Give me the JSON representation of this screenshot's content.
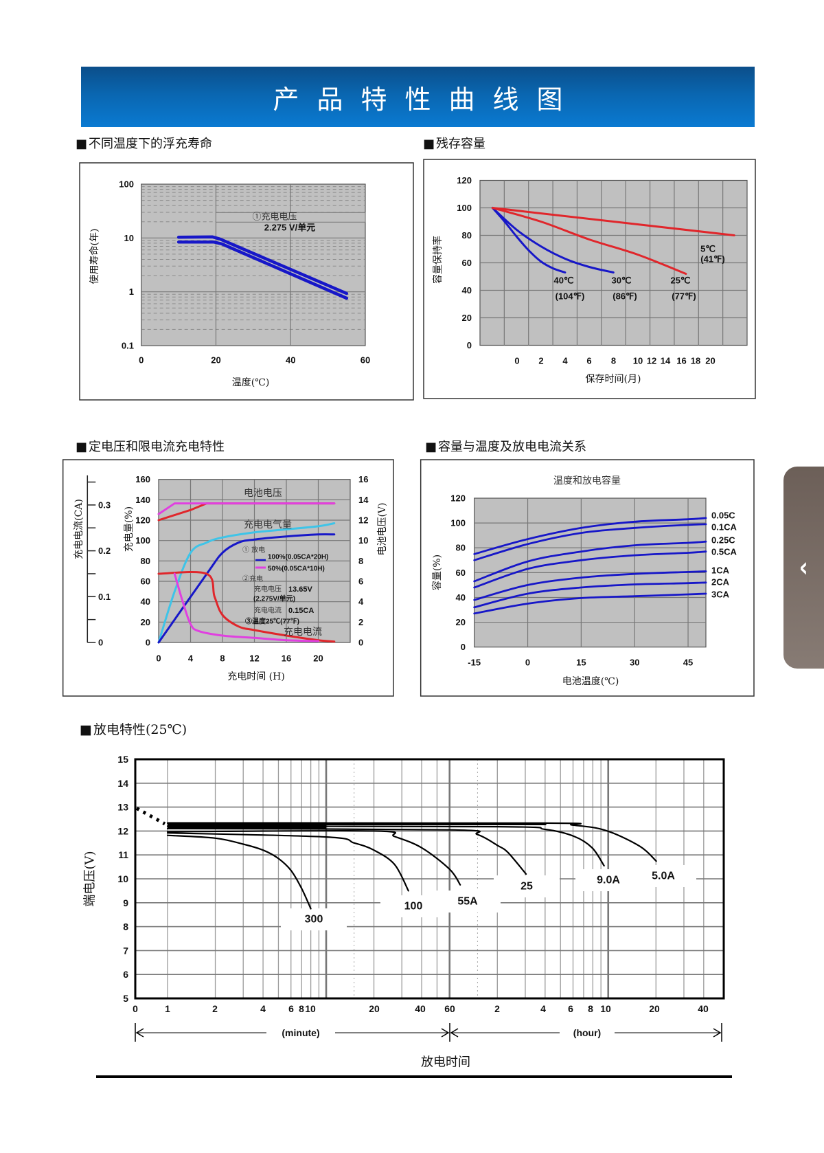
{
  "header": {
    "title": "产品特性曲线图"
  },
  "section_marker": "■",
  "side_tab": {
    "icon": "chevron-left-icon",
    "glyph": "‹"
  },
  "colors": {
    "banner": "#0a66b0",
    "plot_bg": "#c0c0c0",
    "blue": "#1717c8",
    "red": "#e0262b",
    "magenta": "#e040e0",
    "cyan": "#3ec4e8"
  },
  "chart_data": [
    {
      "type": "line",
      "title": "不同温度下的浮充寿命",
      "xlabel": "温度(℃)",
      "ylabel": "使用寿命(年)",
      "xlim": [
        0,
        60
      ],
      "ylim": [
        0.1,
        100
      ],
      "yscale": "log",
      "grid": true,
      "xticks": [
        "0",
        "20",
        "40",
        "60"
      ],
      "yticks": [
        "0.1",
        "1",
        "10",
        "100"
      ],
      "annotation": {
        "line1": "①充电电压",
        "line2": "2.275 V/单元"
      },
      "series": [
        {
          "color": "#1717c8",
          "values": [
            [
              10,
              10.3
            ],
            [
              19,
              10.5
            ],
            [
              21,
              9.6
            ],
            [
              55,
              0.93
            ]
          ]
        },
        {
          "color": "#1717c8",
          "values": [
            [
              10,
              8.4
            ],
            [
              19.5,
              8.4
            ],
            [
              21.5,
              7.8
            ],
            [
              55,
              0.76
            ]
          ]
        }
      ]
    },
    {
      "type": "line",
      "title": "残存容量",
      "xlabel": "保存时间(月)",
      "ylabel": "容量保持率",
      "ylim": [
        0,
        120
      ],
      "grid": true,
      "xticks": [
        "0",
        "2",
        "4",
        "6",
        "8",
        "10",
        "12",
        "14",
        "16",
        "18",
        "20"
      ],
      "yticks": [
        "0",
        "20",
        "40",
        "60",
        "80",
        "100",
        "120"
      ],
      "series": [
        {
          "label": [
            "40℃",
            "(104℉)"
          ],
          "color": "#1717c8",
          "values": [
            [
              0,
              100
            ],
            [
              1,
              90
            ],
            [
              2,
              79
            ],
            [
              3,
              69
            ],
            [
              4,
              61
            ],
            [
              5,
              56
            ],
            [
              6,
              53
            ]
          ]
        },
        {
          "label": [
            "30℃",
            "(86℉)"
          ],
          "color": "#1717c8",
          "values": [
            [
              0,
              100
            ],
            [
              2,
              84
            ],
            [
              4,
              72
            ],
            [
              6,
              63
            ],
            [
              8,
              57
            ],
            [
              10,
              53
            ]
          ]
        },
        {
          "label": [
            "25℃",
            "(77℉)"
          ],
          "color": "#e0262b",
          "values": [
            [
              0,
              100
            ],
            [
              4,
              90
            ],
            [
              8,
              77
            ],
            [
              12,
              66
            ],
            [
              16,
              52
            ]
          ]
        },
        {
          "label": [
            "5℃",
            "(41℉)"
          ],
          "color": "#e0262b",
          "values": [
            [
              0,
              100
            ],
            [
              20,
              80
            ]
          ]
        }
      ]
    },
    {
      "type": "line",
      "title": "定电压和限电流充电特性",
      "xlabel": "充电时间  (H)",
      "ylabel_left": "充电量(%)",
      "ylabel_right": "电池电压(V)",
      "ylabel_far_left": "充电电流(CA)",
      "xlim": [
        0,
        24
      ],
      "ylim_left": [
        0,
        160
      ],
      "ylim_right": [
        0,
        16
      ],
      "grid": true,
      "xticks": [
        "0",
        "4",
        "8",
        "12",
        "16",
        "20"
      ],
      "yticks_left": [
        "0",
        "20",
        "40",
        "60",
        "80",
        "100",
        "120",
        "140",
        "160"
      ],
      "yticks_right": [
        "0",
        "2",
        "4",
        "6",
        "8",
        "10",
        "12",
        "14",
        "16"
      ],
      "yticks_far_left": [
        "0",
        "0.1",
        "0.2",
        "0.3"
      ],
      "annotations": {
        "voltage": "电池电压",
        "charge": "充电电气量",
        "discharge": "① 放电",
        "legend_100": "100%(0.05CA*20H)",
        "legend_50": "50%(0.05CA*10H)",
        "charge_cond": "②充电",
        "charge_voltage_label": "充电电压",
        "charge_voltage_value": "13.65V",
        "per_cell": "(2.275V/单元)",
        "charge_current_label": "充电电流",
        "charge_current_value": "0.15CA",
        "temperature": "③温度25℃(77℉)",
        "current": "充电电流"
      },
      "series": [
        {
          "axis": "V",
          "discharge": "100%",
          "color": "#e0262b",
          "values": [
            [
              0,
              12.0
            ],
            [
              2,
              12.5
            ],
            [
              4,
              13.0
            ],
            [
              6,
              13.65
            ],
            [
              22,
              13.65
            ]
          ]
        },
        {
          "axis": "V",
          "discharge": "50%",
          "color": "#e040e0",
          "values": [
            [
              0,
              12.6
            ],
            [
              2,
              13.65
            ],
            [
              22,
              13.65
            ]
          ]
        },
        {
          "axis": "%",
          "discharge": "50%",
          "color": "#3ec4e8",
          "values": [
            [
              0,
              0
            ],
            [
              2,
              50
            ],
            [
              4,
              88
            ],
            [
              6,
              98
            ],
            [
              8,
              103
            ],
            [
              12,
              108
            ],
            [
              16,
              111
            ],
            [
              20,
              114
            ],
            [
              22,
              117
            ]
          ]
        },
        {
          "axis": "%",
          "discharge": "100%",
          "color": "#1717c8",
          "values": [
            [
              0,
              0
            ],
            [
              6,
              67
            ],
            [
              8,
              88
            ],
            [
              10,
              98
            ],
            [
              12,
              101
            ],
            [
              16,
              104
            ],
            [
              20,
              106
            ],
            [
              22,
              106
            ]
          ]
        },
        {
          "axis": "CA",
          "discharge": "100%",
          "color": "#e0262b",
          "values": [
            [
              0,
              0.15
            ],
            [
              6,
              0.15
            ],
            [
              7,
              0.1
            ],
            [
              8,
              0.06
            ],
            [
              10,
              0.035
            ],
            [
              12,
              0.027
            ],
            [
              16,
              0.015
            ],
            [
              20,
              0.005
            ],
            [
              22,
              0.002
            ]
          ]
        },
        {
          "axis": "CA",
          "discharge": "50%",
          "color": "#e040e0",
          "values": [
            [
              2,
              0.15
            ],
            [
              3,
              0.09
            ],
            [
              4,
              0.04
            ],
            [
              5,
              0.025
            ],
            [
              8,
              0.015
            ],
            [
              12,
              0.01
            ],
            [
              16,
              0.005
            ],
            [
              20,
              0.003
            ]
          ]
        }
      ]
    },
    {
      "type": "line",
      "section_title": "容量与温度及放电电流关系",
      "title": "温度和放电容量",
      "xlabel": "电池温度(℃)",
      "ylabel": "容量(%)",
      "xlim": [
        -15,
        50
      ],
      "ylim": [
        0,
        120
      ],
      "grid": true,
      "xticks": [
        "-15",
        "0",
        "15",
        "30",
        "45"
      ],
      "yticks": [
        "0",
        "20",
        "40",
        "60",
        "80",
        "100",
        "120"
      ],
      "x": [
        -15,
        0,
        15,
        30,
        45,
        50
      ],
      "series": [
        {
          "name": "0.05C",
          "values": [
            75,
            87,
            96,
            101,
            103,
            104
          ]
        },
        {
          "name": "0.1CA",
          "values": [
            70,
            83,
            92,
            96,
            98.5,
            99
          ]
        },
        {
          "name": "0.25C",
          "values": [
            53,
            69,
            77,
            82,
            84,
            85
          ]
        },
        {
          "name": "0.5CA",
          "values": [
            48,
            63,
            70,
            74,
            76,
            77
          ]
        },
        {
          "name": "1CA",
          "values": [
            38,
            50,
            56,
            59,
            60.5,
            61
          ]
        },
        {
          "name": "2CA",
          "values": [
            32,
            43,
            48,
            50.5,
            51.5,
            52
          ]
        },
        {
          "name": "3CA",
          "values": [
            27,
            35,
            39.5,
            41,
            42.5,
            43
          ]
        }
      ]
    },
    {
      "type": "line",
      "title": "放电特性(25℃)",
      "xlabel": "放电时间",
      "x_unit_minute": "(minute)",
      "x_unit_hour": "(hour)",
      "ylabel": "端电压(V)",
      "xscale": "log",
      "x_units": "minutes",
      "ylim": [
        5,
        15
      ],
      "grid": true,
      "xticks": [
        "0",
        "1",
        "2",
        "4",
        "6",
        "8",
        "10",
        "20",
        "40",
        "60",
        "2",
        "4",
        "6",
        "8",
        "10",
        "20",
        "40"
      ],
      "yticks": [
        "5",
        "6",
        "7",
        "8",
        "9",
        "10",
        "11",
        "12",
        "13",
        "14",
        "15"
      ],
      "series": [
        {
          "name": "300",
          "values": [
            [
              1,
              11.82
            ],
            [
              2,
              11.7
            ],
            [
              3,
              11.45
            ],
            [
              4,
              11.2
            ],
            [
              5,
              10.85
            ],
            [
              6,
              10.35
            ],
            [
              7,
              9.6
            ],
            [
              8,
              8.75
            ]
          ]
        },
        {
          "name": "100",
          "values": [
            [
              1,
              11.92
            ],
            [
              10,
              11.75
            ],
            [
              15,
              11.5
            ],
            [
              20,
              11.2
            ],
            [
              27,
              10.6
            ],
            [
              33,
              9.5
            ]
          ]
        },
        {
          "name": "55A",
          "values": [
            [
              1,
              11.97
            ],
            [
              20,
              12.0
            ],
            [
              27,
              11.77
            ],
            [
              40,
              11.3
            ],
            [
              60,
              10.4
            ],
            [
              70,
              9.75
            ]
          ]
        },
        {
          "name": "25",
          "values": [
            [
              1,
              12.1
            ],
            [
              60,
              12.05
            ],
            [
              90,
              11.85
            ],
            [
              120,
              11.4
            ],
            [
              140,
              11.1
            ],
            [
              182,
              10.2
            ]
          ]
        },
        {
          "name": "9.0A",
          "values": [
            [
              1,
              12.2
            ],
            [
              120,
              12.18
            ],
            [
              240,
              12.07
            ],
            [
              365,
              11.78
            ],
            [
              475,
              11.3
            ],
            [
              565,
              10.55
            ]
          ]
        },
        {
          "name": "5.0A",
          "values": [
            [
              1,
              12.33
            ],
            [
              240,
              12.33
            ],
            [
              355,
              12.25
            ],
            [
              575,
              12.03
            ],
            [
              950,
              11.36
            ],
            [
              1205,
              10.74
            ]
          ]
        }
      ]
    }
  ]
}
